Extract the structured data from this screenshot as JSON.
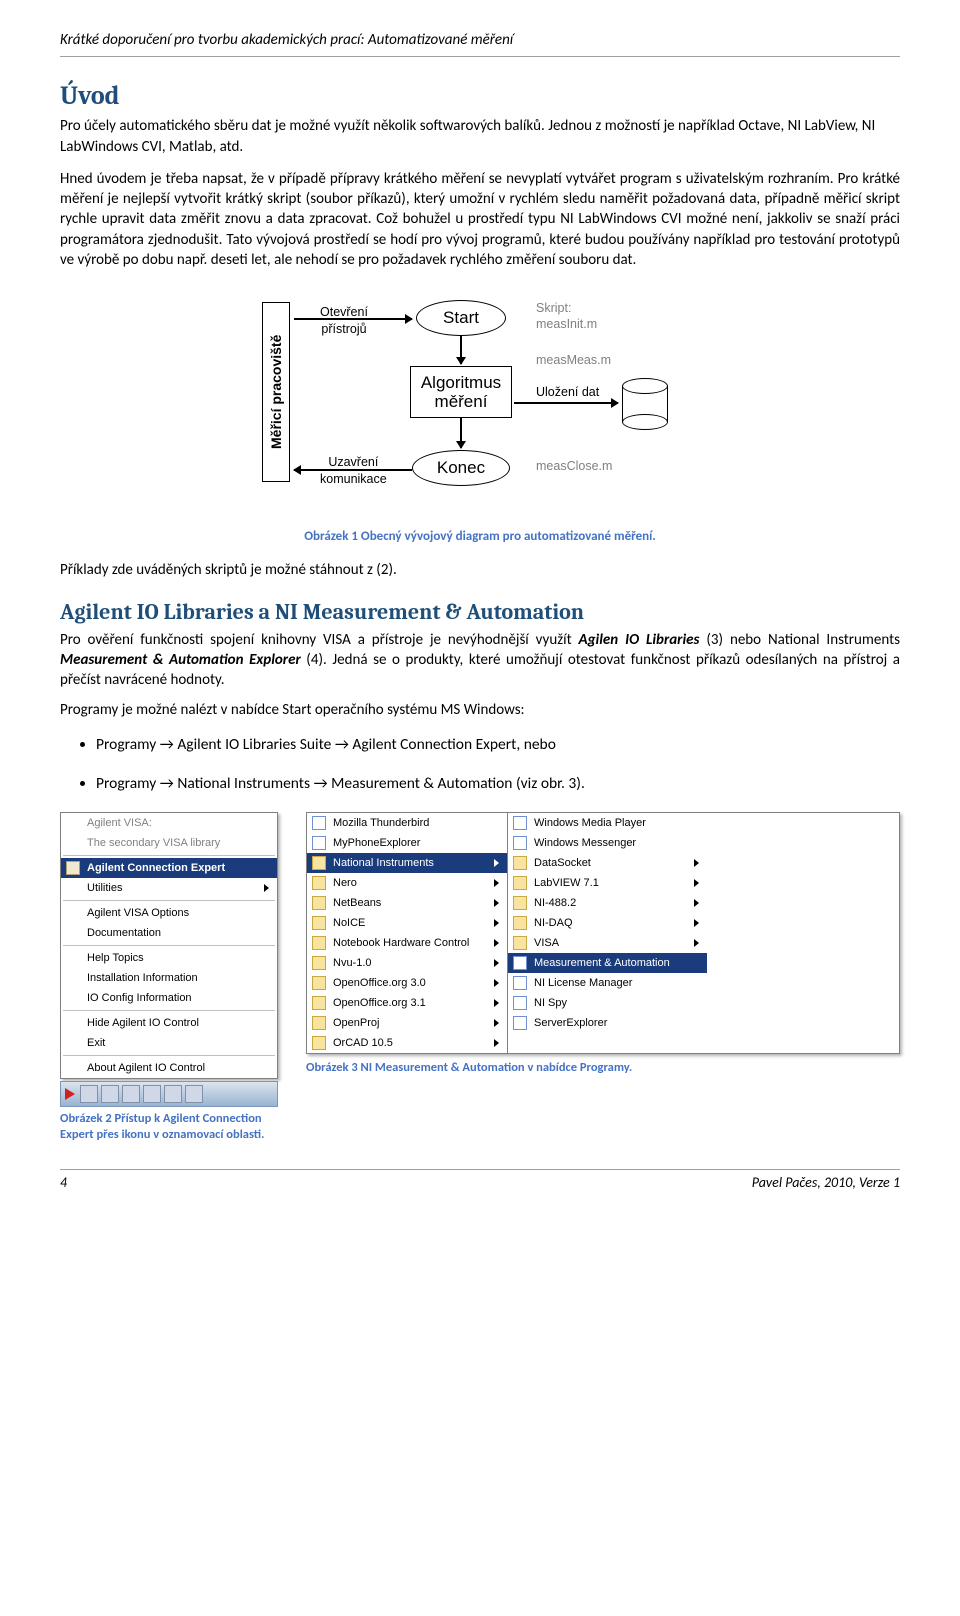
{
  "header": {
    "text": "Krátké doporučení pro tvorbu akademických prací: Automatizované měření"
  },
  "s1": {
    "title": "Úvod",
    "p1": "Pro účely automatického sběru dat je možné využít několik softwarových balíků. Jednou z možností je například Octave, NI LabView, NI LabWindows CVI, Matlab, atd.",
    "p2": "Hned úvodem je třeba napsat, že v případě přípravy krátkého měření se nevyplatí vytvářet program s uživatelským rozhraním. Pro krátké měření je nejlepší vytvořit krátký skript (soubor příkazů), který umožní v rychlém sledu naměřit požadovaná data, případně měřicí skript rychle upravit data změřit znovu a data zpracovat. Což bohužel u prostředí typu NI LabWindows CVI možné není, jakkoliv se snaží práci programátora zjednodušit. Tato vývojová prostředí se hodí pro vývoj programů, které budou používány například pro testování prototypů ve výrobě po dobu např. deseti let, ale nehodí se pro požadavek rychlého změření souboru dat."
  },
  "flowchart": {
    "workstation": "Měřicí pracoviště",
    "open": "Otevření\npřístrojů",
    "close": "Uzavření\nkomunikace",
    "start": "Start",
    "algo": "Algoritmus\nměření",
    "end": "Konec",
    "skript_label": "Skript:",
    "init": "measInit.m",
    "meas": "measMeas.m",
    "save": "Uložení dat",
    "closem": "measClose.m"
  },
  "caption1": "Obrázek 1 Obecný vývojový diagram pro automatizované měření.",
  "afterfig": "Příklady zde uváděných skriptů je možné stáhnout z (2).",
  "s2": {
    "title": "Agilent IO Libraries a NI Measurement & Automation",
    "p_a": "Pro ověření funkčnosti spojení knihovny VISA a přístroje je nevýhodnější využít ",
    "b1": "Agilen IO Libraries",
    "p_b": " (3) nebo National Instruments ",
    "b2": "Measurement & Automation Explorer",
    "p_c": " (4). Jedná se o produkty, které umožňují otestovat funkčnost příkazů odesílaných na přístroj a přečíst navrácené hodnoty.",
    "p2": "Programy je možné nalézt v nabídce Start operačního systému MS Windows:",
    "li1a": "Programy ",
    "li1b": " Agilent IO Libraries Suite ",
    "li1c": " Agilent Connection Expert, nebo",
    "li2a": "Programy ",
    "li2b": " National Instruments ",
    "li2c": " Measurement & Automation (viz obr. 3)."
  },
  "agilent_menu": {
    "header1": "Agilent VISA:",
    "header2": "The secondary VISA library",
    "items": [
      "Agilent Connection Expert",
      "Utilities",
      "Agilent VISA Options",
      "Documentation",
      "Help Topics",
      "Installation Information",
      "IO Config Information",
      "Hide Agilent IO Control",
      "Exit",
      "About Agilent IO Control"
    ],
    "selected": 0,
    "sep_after": [
      1,
      3,
      6,
      8
    ]
  },
  "caption2": "Obrázek 2 Přístup k Agilent Connection Expert přes ikonu v oznamovací oblasti.",
  "ni_menu": {
    "left": [
      {
        "l": "Mozilla Thunderbird",
        "t": "app"
      },
      {
        "l": "MyPhoneExplorer",
        "t": "app"
      },
      {
        "l": "National Instruments",
        "t": "folder"
      },
      {
        "l": "Nero",
        "t": "folder"
      },
      {
        "l": "NetBeans",
        "t": "folder"
      },
      {
        "l": "NoICE",
        "t": "folder"
      },
      {
        "l": "Notebook Hardware Control",
        "t": "folder"
      },
      {
        "l": "Nvu-1.0",
        "t": "folder"
      },
      {
        "l": "OpenOffice.org 3.0",
        "t": "folder"
      },
      {
        "l": "OpenOffice.org 3.1",
        "t": "folder"
      },
      {
        "l": "OpenProj",
        "t": "folder"
      },
      {
        "l": "OrCAD 10.5",
        "t": "folder"
      }
    ],
    "left_selected": 2,
    "right": [
      {
        "l": "Windows Media Player",
        "t": "app"
      },
      {
        "l": "Windows Messenger",
        "t": "app"
      },
      {
        "l": "DataSocket",
        "t": "folder"
      },
      {
        "l": "LabVIEW 7.1",
        "t": "folder"
      },
      {
        "l": "NI-488.2",
        "t": "folder"
      },
      {
        "l": "NI-DAQ",
        "t": "folder"
      },
      {
        "l": "VISA",
        "t": "folder"
      },
      {
        "l": "Measurement & Automation",
        "t": "app"
      },
      {
        "l": "NI License Manager",
        "t": "app"
      },
      {
        "l": "NI Spy",
        "t": "app"
      },
      {
        "l": "ServerExplorer",
        "t": "app"
      }
    ],
    "right_selected": 7
  },
  "caption3": "Obrázek 3 NI Measurement & Automation v nabídce Programy.",
  "footer": {
    "page": "4",
    "author": "Pavel Pačes, 2010, Verze 1"
  },
  "arrow_glyph": "→"
}
